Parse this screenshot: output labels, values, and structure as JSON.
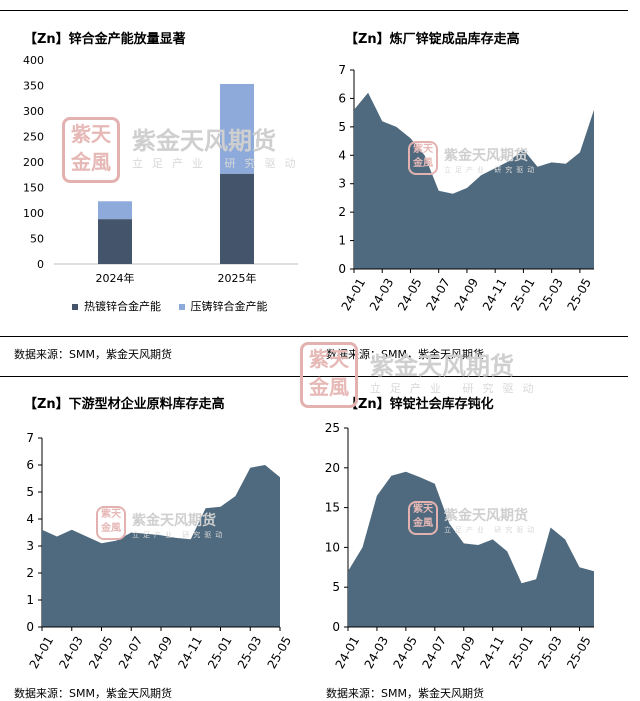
{
  "panels": [
    {
      "title": "【Zn】锌合金产能放量显著",
      "source": "数据来源：SMM，紫金天风期货",
      "chart_data": {
        "type": "bar",
        "stacked": true,
        "categories": [
          "2024年",
          "2025年"
        ],
        "series": [
          {
            "name": "热镀锌合金产能",
            "values": [
              88,
              177
            ],
            "color": "#44546a"
          },
          {
            "name": "压铸锌合金产能",
            "values": [
              35,
              176
            ],
            "color": "#8eaadb"
          }
        ],
        "ylim": [
          0,
          400
        ],
        "yticks": [
          0,
          50,
          100,
          150,
          200,
          250,
          300,
          350,
          400
        ],
        "legend": "bottom"
      }
    },
    {
      "title": "【Zn】炼厂锌锭成品库存走高",
      "source": "数据来源：SMM，紫金天风期货",
      "chart_data": {
        "type": "area",
        "color": "#4f6a7e",
        "x": [
          "24-01",
          "24-02",
          "24-03",
          "24-04",
          "24-05",
          "24-06",
          "24-07",
          "24-08",
          "24-09",
          "24-10",
          "24-11",
          "24-12",
          "25-01",
          "25-02",
          "25-03",
          "25-04",
          "25-05",
          "25-06"
        ],
        "values": [
          5.6,
          6.2,
          5.2,
          5.0,
          4.6,
          4.0,
          2.75,
          2.65,
          2.85,
          3.3,
          3.55,
          3.8,
          4.2,
          3.6,
          3.75,
          3.7,
          4.1,
          5.6
        ],
        "xticks": [
          "24-01",
          "24-03",
          "24-05",
          "24-07",
          "24-09",
          "24-11",
          "25-01",
          "25-03",
          "25-05"
        ],
        "ylim": [
          0,
          7
        ],
        "yticks": [
          0,
          1,
          2,
          3,
          4,
          5,
          6,
          7
        ]
      }
    },
    {
      "title": "【Zn】下游型材企业原料库存走高",
      "source": "数据来源：SMM，紫金天风期货",
      "chart_data": {
        "type": "area",
        "color": "#4f6a7e",
        "x": [
          "24-01",
          "24-02",
          "24-03",
          "24-04",
          "24-05",
          "24-06",
          "24-07",
          "24-08",
          "24-09",
          "24-10",
          "24-11",
          "24-12",
          "25-01",
          "25-02",
          "25-03",
          "25-04",
          "25-05"
        ],
        "values": [
          3.6,
          3.35,
          3.6,
          3.35,
          3.1,
          3.2,
          3.5,
          3.45,
          3.4,
          3.3,
          3.25,
          4.4,
          4.45,
          4.85,
          5.9,
          6.0,
          5.55
        ],
        "xticks": [
          "24-01",
          "24-03",
          "24-05",
          "24-07",
          "24-09",
          "24-11",
          "25-01",
          "25-03",
          "25-05"
        ],
        "ylim": [
          0,
          7
        ],
        "yticks": [
          0,
          1,
          2,
          3,
          4,
          5,
          6,
          7
        ]
      }
    },
    {
      "title": "【Zn】锌锭社会库存钝化",
      "source": "数据来源：SMM，紫金天风期货",
      "chart_data": {
        "type": "area",
        "color": "#4f6a7e",
        "x": [
          "24-01",
          "24-02",
          "24-03",
          "24-04",
          "24-05",
          "24-06",
          "24-07",
          "24-08",
          "24-09",
          "24-10",
          "24-11",
          "24-12",
          "25-01",
          "25-02",
          "25-03",
          "25-04",
          "25-05",
          "25-06"
        ],
        "values": [
          7.0,
          10.0,
          16.5,
          19.0,
          19.5,
          18.8,
          18.0,
          13.0,
          10.5,
          10.3,
          11.0,
          9.5,
          5.5,
          6.0,
          12.5,
          11.0,
          7.5,
          7.0
        ],
        "xticks": [
          "24-01",
          "24-03",
          "24-05",
          "24-07",
          "24-09",
          "24-11",
          "25-01",
          "25-03",
          "25-05"
        ],
        "ylim": [
          0,
          25
        ],
        "yticks": [
          0,
          5,
          10,
          15,
          20,
          25
        ]
      }
    }
  ],
  "watermark": {
    "seal_chars": [
      "紫",
      "天",
      "金",
      "風"
    ],
    "brand": "紫金天风期货",
    "slogan": "立足产业 研究驱动"
  }
}
